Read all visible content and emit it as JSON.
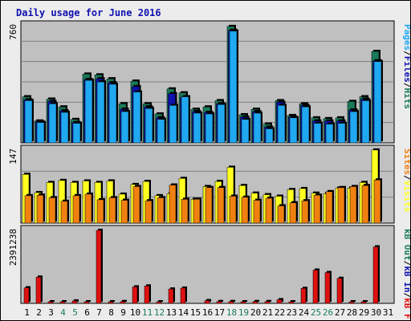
{
  "chart_data": {
    "type": "bar",
    "title": "Daily usage for June 2016",
    "categories": [
      "1",
      "2",
      "3",
      "4",
      "5",
      "6",
      "7",
      "8",
      "9",
      "10",
      "11",
      "12",
      "13",
      "14",
      "15",
      "16",
      "17",
      "18",
      "19",
      "20",
      "21",
      "22",
      "23",
      "24",
      "25",
      "26",
      "27",
      "28",
      "29",
      "30",
      "31"
    ],
    "weekend_days": [
      "4",
      "5",
      "11",
      "12",
      "18",
      "19",
      "25",
      "26"
    ],
    "panels": [
      {
        "id": "top",
        "ymax_label": "760",
        "ylim": [
          0,
          760
        ],
        "series": [
          {
            "name": "Hits",
            "color": "#1a7a5a",
            "values": [
              295,
              140,
              280,
              230,
              150,
              440,
              435,
              410,
              250,
              395,
              250,
              185,
              345,
              320,
              215,
              230,
              270,
              745,
              180,
              215,
              120,
              270,
              175,
              250,
              160,
              155,
              160,
              265,
              295,
              585,
              0
            ]
          },
          {
            "name": "Files",
            "color": "#1010b0",
            "values": [
              275,
              135,
              265,
              205,
              130,
              405,
              410,
              385,
              215,
              360,
              230,
              160,
              315,
              290,
              200,
              195,
              250,
              720,
              165,
              200,
              100,
              260,
              165,
              240,
              140,
              140,
              140,
              210,
              280,
              525,
              0
            ]
          },
          {
            "name": "Pages",
            "color": "#20a8f0",
            "values": [
              270,
              130,
              250,
              195,
              125,
              400,
              390,
              375,
              200,
              325,
              220,
              150,
              240,
              295,
              190,
              185,
              245,
              715,
              150,
              190,
              90,
              240,
              160,
              230,
              125,
              120,
              125,
              200,
              270,
              520,
              0
            ]
          }
        ]
      },
      {
        "id": "middle",
        "ymax_label": "147",
        "ylim": [
          0,
          147
        ],
        "series": [
          {
            "name": "Visits",
            "color": "#ffff20",
            "values": [
              96,
              60,
              80,
              84,
              80,
              83,
              80,
              83,
              57,
              76,
              82,
              54,
              58,
              88,
              47,
              72,
              82,
              110,
              74,
              59,
              56,
              53,
              66,
              68,
              59,
              58,
              69,
              69,
              80,
              144,
              0
            ]
          },
          {
            "name": "Sites",
            "color": "#f08010",
            "values": [
              54,
              55,
              50,
              43,
              54,
              57,
              46,
              50,
              45,
              72,
              44,
              50,
              75,
              47,
              47,
              70,
              70,
              53,
              51,
              45,
              49,
              34,
              40,
              44,
              55,
              62,
              70,
              72,
              74,
              85,
              0
            ]
          }
        ]
      },
      {
        "id": "bottom",
        "ymax_label": "2391238",
        "ylim": [
          0,
          2391238
        ],
        "series": [
          {
            "name": "kB In",
            "color": "#1010b0",
            "values": [
              0,
              0,
              0,
              0,
              0,
              0,
              0,
              0,
              0,
              0,
              0,
              0,
              0,
              0,
              0,
              0,
              0,
              0,
              0,
              0,
              0,
              0,
              0,
              0,
              0,
              0,
              0,
              0,
              0,
              0,
              0
            ]
          },
          {
            "name": "kB Out",
            "color": "#1a7a5a",
            "values": [
              0,
              0,
              0,
              0,
              0,
              0,
              0,
              0,
              0,
              0,
              0,
              0,
              0,
              0,
              0,
              0,
              0,
              0,
              0,
              0,
              0,
              0,
              0,
              0,
              0,
              0,
              0,
              0,
              0,
              0,
              0
            ]
          },
          {
            "name": "kB F",
            "color": "#e01010",
            "values": [
              510000,
              860000,
              12000,
              10000,
              80000,
              20000,
              2391238,
              40000,
              60000,
              540000,
              570000,
              10000,
              470000,
              500000,
              0,
              90000,
              60000,
              60000,
              50000,
              60000,
              60000,
              120000,
              20000,
              490000,
              1090000,
              1010000,
              820000,
              20000,
              20000,
              1850000,
              0
            ]
          }
        ]
      }
    ],
    "side_labels": {
      "top": [
        "Hits",
        "/",
        "Files",
        "/",
        "Pages"
      ],
      "middle": [
        "Visits",
        "/",
        "Sites"
      ],
      "bottom": [
        "kB F",
        "/",
        "kB In",
        "/",
        "kB Out"
      ]
    },
    "colors": {
      "panel_bg": "#c0c0c0",
      "frame_bg": "#ececec",
      "weekday_label": "#000000",
      "weekend_label": "#1a7a5a",
      "slash": "#000000"
    }
  }
}
